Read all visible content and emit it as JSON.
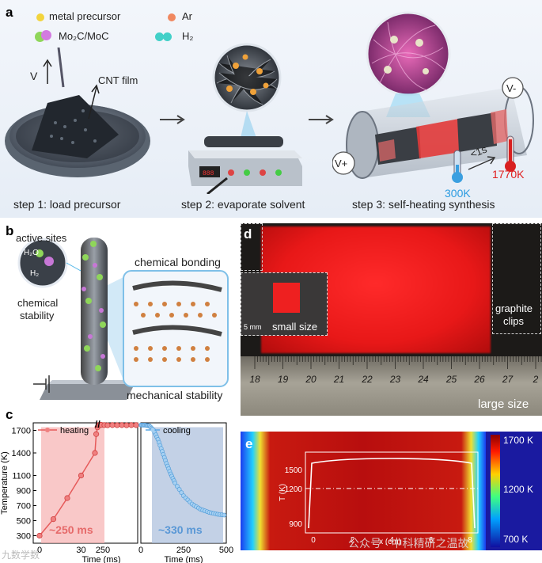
{
  "panels": {
    "a": "a",
    "b": "b",
    "c": "c",
    "d": "d",
    "e": "e"
  },
  "legend_a": {
    "metal_precursor": "metal precursor",
    "ar": "Ar",
    "mo2c": "Mo₂C/MoC",
    "h2": "H₂",
    "colors": {
      "metal": "#f2d43c",
      "ar": "#f08860",
      "mo2c_a": "#8fd65a",
      "mo2c_b": "#d37be0",
      "h2": "#42d0c8"
    }
  },
  "panel_a": {
    "v_label": "V",
    "cnt_film": "CNT film",
    "v_plus": "V+",
    "v_minus": "V-",
    "time": "<1s",
    "temp_low": "300K",
    "temp_high": "1770K",
    "step1": "step 1: load precursor",
    "step2": "step 2: evaporate solvent",
    "step3": "step 3: self-heating synthesis"
  },
  "panel_b": {
    "active_sites": "active sites",
    "h2o": "H₂O",
    "h2": "H₂",
    "chem_stability_1": "chemical",
    "chem_stability_2": "stability",
    "chem_bonding": "chemical bonding",
    "mech_stability": "mechanical stability"
  },
  "panel_d": {
    "graphite_1": "graphite",
    "graphite_2": "clips",
    "small_size": "small size",
    "scale": "5 mm",
    "large_size": "large size",
    "ruler_ticks": [
      "18",
      "19",
      "20",
      "21",
      "22",
      "23",
      "24",
      "25",
      "26",
      "27",
      "2"
    ]
  },
  "panel_e": {
    "colorbar_ticks": [
      "1700 K",
      "1200 K",
      "700 K"
    ],
    "ylabel": "T (K)",
    "xlabel": "x (cm)",
    "yticks": [
      "1500",
      "1200",
      "900"
    ],
    "xticks": [
      "0",
      "2",
      "4",
      "6",
      "8"
    ]
  },
  "chart_data": {
    "type": "line",
    "ylabel": "Temperature (K)",
    "ylim": [
      200,
      1800
    ],
    "yticks": [
      300,
      500,
      700,
      900,
      1100,
      1400,
      1700
    ],
    "xlabel": "Time  (ms)",
    "heating": {
      "name": "heating",
      "x": [
        0,
        10,
        20,
        30,
        40
      ],
      "y": [
        300,
        520,
        800,
        1100,
        1400
      ],
      "x_continued": [
        48,
        56,
        64,
        72,
        80,
        100,
        120,
        150,
        180,
        210,
        240,
        270,
        300
      ],
      "y_continued": [
        1650,
        1740,
        1770,
        1775,
        1772,
        1770,
        1768,
        1770,
        1769,
        1770,
        1768,
        1770,
        1770
      ],
      "xticks": [
        "0",
        "30",
        "250"
      ],
      "label": "~250 ms",
      "break_mark": "//"
    },
    "cooling": {
      "name": "cooling",
      "x": [
        0,
        25,
        50,
        75,
        100,
        125,
        150,
        175,
        200,
        250,
        300,
        350,
        400,
        450,
        500
      ],
      "y": [
        1770,
        1770,
        1760,
        1700,
        1580,
        1420,
        1260,
        1120,
        1000,
        830,
        720,
        650,
        610,
        585,
        570
      ],
      "xticks": [
        "0",
        "250",
        "500"
      ],
      "label": "~330 ms"
    }
  },
  "watermark": {
    "left": "九数学数",
    "right": "公众号 · 中科精研之温故"
  }
}
